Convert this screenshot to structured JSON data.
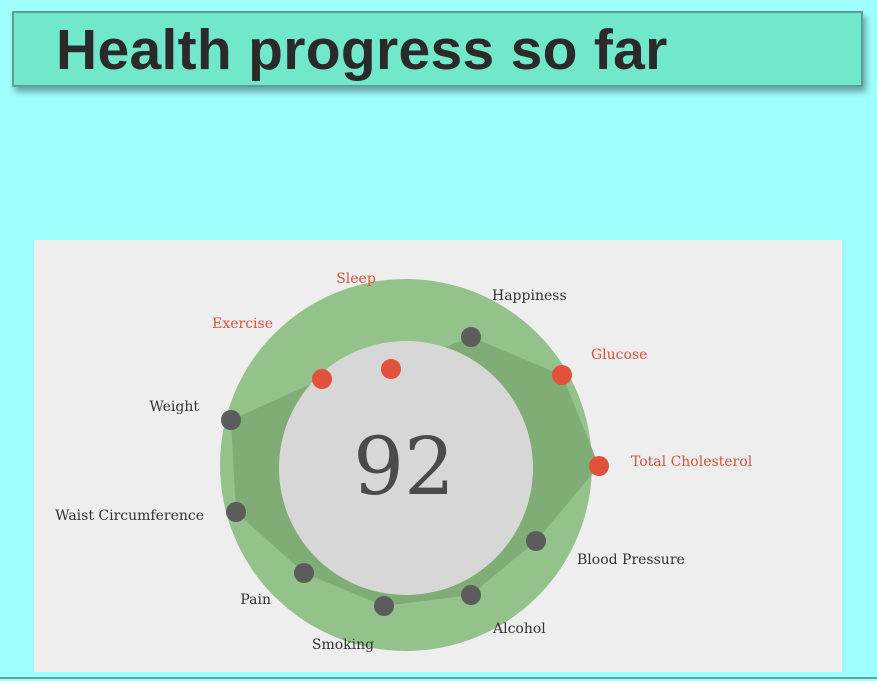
{
  "slide": {
    "title": "Health progress so far"
  },
  "gauge": {
    "score": "92",
    "colors": {
      "ring": "#93c38a",
      "inner_shape": "#80ac75",
      "center": "#d7d7d7",
      "dot_good": "#5c5c5c",
      "dot_bad": "#e2513b",
      "label_good": "#333333",
      "label_bad": "#e2513b"
    },
    "metrics": [
      {
        "label": "Sleep",
        "status": "bad"
      },
      {
        "label": "Happiness",
        "status": "good"
      },
      {
        "label": "Glucose",
        "status": "bad"
      },
      {
        "label": "Total Cholesterol",
        "status": "bad"
      },
      {
        "label": "Blood Pressure",
        "status": "good"
      },
      {
        "label": "Alcohol",
        "status": "good"
      },
      {
        "label": "Smoking",
        "status": "good"
      },
      {
        "label": "Pain",
        "status": "good"
      },
      {
        "label": "Waist Circumference",
        "status": "good"
      },
      {
        "label": "Weight",
        "status": "good"
      },
      {
        "label": "Exercise",
        "status": "bad"
      }
    ]
  }
}
